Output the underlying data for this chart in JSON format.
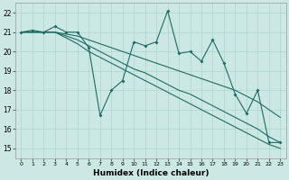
{
  "xlabel": "Humidex (Indice chaleur)",
  "xlim": [
    -0.5,
    23.5
  ],
  "ylim": [
    14.5,
    22.5
  ],
  "xticks": [
    0,
    1,
    2,
    3,
    4,
    5,
    6,
    7,
    8,
    9,
    10,
    11,
    12,
    13,
    14,
    15,
    16,
    17,
    18,
    19,
    20,
    21,
    22,
    23
  ],
  "yticks": [
    15,
    16,
    17,
    18,
    19,
    20,
    21,
    22
  ],
  "bg_color": "#cce8e4",
  "line_color": "#1e6b65",
  "grid_color": "#aed4ce",
  "main_series": [
    21.0,
    21.1,
    21.0,
    21.3,
    21.0,
    21.0,
    20.2,
    16.7,
    18.0,
    18.5,
    20.5,
    20.3,
    20.5,
    22.1,
    19.9,
    20.0,
    19.5,
    20.6,
    19.4,
    17.8,
    16.8,
    18.0,
    15.3,
    15.3
  ],
  "trend1": [
    21.0,
    21.0,
    21.0,
    21.0,
    20.9,
    20.8,
    20.6,
    20.4,
    20.2,
    20.0,
    19.8,
    19.6,
    19.4,
    19.2,
    19.0,
    18.8,
    18.6,
    18.4,
    18.2,
    18.0,
    17.7,
    17.4,
    17.0,
    16.6
  ],
  "trend2": [
    21.0,
    21.0,
    21.0,
    21.0,
    20.8,
    20.6,
    20.3,
    20.0,
    19.7,
    19.4,
    19.1,
    18.9,
    18.6,
    18.3,
    18.0,
    17.8,
    17.5,
    17.2,
    16.9,
    16.6,
    16.3,
    16.0,
    15.6,
    15.3
  ],
  "trend3": [
    21.0,
    21.0,
    21.0,
    21.0,
    20.7,
    20.4,
    20.0,
    19.7,
    19.4,
    19.1,
    18.8,
    18.5,
    18.2,
    17.9,
    17.6,
    17.3,
    17.0,
    16.7,
    16.4,
    16.1,
    15.8,
    15.5,
    15.2,
    15.0
  ]
}
